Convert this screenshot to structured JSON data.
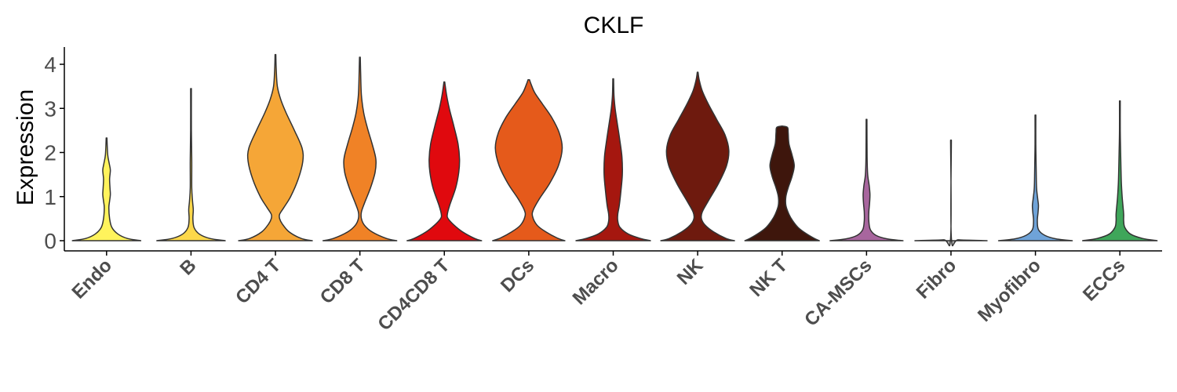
{
  "chart_data": {
    "type": "violin",
    "title": "CKLF",
    "xlabel": "",
    "ylabel": "Expression",
    "ylim": [
      -0.22,
      4.4
    ],
    "yticks": [
      "0",
      "1",
      "2",
      "3",
      "4"
    ],
    "grid": false,
    "legend": "none",
    "categories": [
      "Endo",
      "B",
      "CD4 T",
      "CD8 T",
      "CD4CD8 T",
      "DCs",
      "Macro",
      "NK",
      "NK T",
      "CA-MSCs",
      "Fibro",
      "Myofibro",
      "ECCs"
    ],
    "colors": [
      "#FFF35C",
      "#FDD84A",
      "#F5A637",
      "#F08226",
      "#E0090E",
      "#E55A1B",
      "#A5170F",
      "#6E1A0E",
      "#3E160C",
      "#A8669E",
      "#B8B8B8",
      "#6FA3D8",
      "#3FA65A"
    ],
    "violins": [
      {
        "category": "Endo",
        "max": 2.33,
        "profile": [
          [
            0,
            0.9
          ],
          [
            0.05,
            0.55
          ],
          [
            0.15,
            0.3
          ],
          [
            0.3,
            0.14
          ],
          [
            0.5,
            0.08
          ],
          [
            0.75,
            0.06
          ],
          [
            0.9,
            0.08
          ],
          [
            1.05,
            0.1
          ],
          [
            1.2,
            0.09
          ],
          [
            1.4,
            0.08
          ],
          [
            1.6,
            0.1
          ],
          [
            1.75,
            0.07
          ],
          [
            1.95,
            0.03
          ],
          [
            2.33,
            0.01
          ]
        ]
      },
      {
        "category": "B",
        "max": 3.45,
        "profile": [
          [
            0,
            0.9
          ],
          [
            0.05,
            0.5
          ],
          [
            0.15,
            0.22
          ],
          [
            0.3,
            0.08
          ],
          [
            0.5,
            0.05
          ],
          [
            0.7,
            0.06
          ],
          [
            0.9,
            0.04
          ],
          [
            1.2,
            0.02
          ],
          [
            1.8,
            0.02
          ],
          [
            2.5,
            0.01
          ],
          [
            3.45,
            0.01
          ]
        ]
      },
      {
        "category": "CD4 T",
        "max": 4.22,
        "profile": [
          [
            0,
            0.97
          ],
          [
            0.05,
            0.68
          ],
          [
            0.2,
            0.36
          ],
          [
            0.38,
            0.18
          ],
          [
            0.5,
            0.11
          ],
          [
            0.6,
            0.11
          ],
          [
            0.75,
            0.22
          ],
          [
            1.0,
            0.4
          ],
          [
            1.4,
            0.6
          ],
          [
            1.8,
            0.72
          ],
          [
            2.1,
            0.7
          ],
          [
            2.5,
            0.5
          ],
          [
            2.9,
            0.28
          ],
          [
            3.2,
            0.14
          ],
          [
            3.5,
            0.05
          ],
          [
            3.9,
            0.02
          ],
          [
            4.22,
            0.01
          ]
        ]
      },
      {
        "category": "CD8 T",
        "max": 4.16,
        "profile": [
          [
            0,
            0.97
          ],
          [
            0.05,
            0.7
          ],
          [
            0.2,
            0.32
          ],
          [
            0.35,
            0.12
          ],
          [
            0.5,
            0.04
          ],
          [
            0.65,
            0.04
          ],
          [
            0.85,
            0.12
          ],
          [
            1.2,
            0.28
          ],
          [
            1.55,
            0.4
          ],
          [
            1.85,
            0.42
          ],
          [
            2.2,
            0.32
          ],
          [
            2.55,
            0.2
          ],
          [
            2.9,
            0.1
          ],
          [
            3.3,
            0.04
          ],
          [
            3.8,
            0.02
          ],
          [
            4.16,
            0.01
          ]
        ]
      },
      {
        "category": "CD4CD8 T",
        "max": 3.6,
        "profile": [
          [
            0,
            0.98
          ],
          [
            0.05,
            0.8
          ],
          [
            0.2,
            0.48
          ],
          [
            0.35,
            0.26
          ],
          [
            0.5,
            0.1
          ],
          [
            0.6,
            0.08
          ],
          [
            0.8,
            0.14
          ],
          [
            1.2,
            0.3
          ],
          [
            1.55,
            0.38
          ],
          [
            1.85,
            0.4
          ],
          [
            2.2,
            0.36
          ],
          [
            2.6,
            0.25
          ],
          [
            3.0,
            0.13
          ],
          [
            3.3,
            0.06
          ],
          [
            3.6,
            0.01
          ]
        ]
      },
      {
        "category": "DCs",
        "max": 3.65,
        "profile": [
          [
            0,
            0.95
          ],
          [
            0.06,
            0.75
          ],
          [
            0.2,
            0.45
          ],
          [
            0.35,
            0.22
          ],
          [
            0.55,
            0.1
          ],
          [
            0.7,
            0.12
          ],
          [
            0.95,
            0.28
          ],
          [
            1.3,
            0.55
          ],
          [
            1.7,
            0.78
          ],
          [
            2.1,
            0.88
          ],
          [
            2.45,
            0.8
          ],
          [
            2.8,
            0.6
          ],
          [
            3.1,
            0.36
          ],
          [
            3.35,
            0.16
          ],
          [
            3.55,
            0.06
          ],
          [
            3.65,
            0.02
          ]
        ]
      },
      {
        "category": "Macro",
        "max": 3.67,
        "profile": [
          [
            0,
            0.98
          ],
          [
            0.05,
            0.72
          ],
          [
            0.15,
            0.4
          ],
          [
            0.3,
            0.18
          ],
          [
            0.45,
            0.12
          ],
          [
            0.6,
            0.12
          ],
          [
            0.8,
            0.16
          ],
          [
            1.1,
            0.2
          ],
          [
            1.5,
            0.24
          ],
          [
            1.9,
            0.23
          ],
          [
            2.3,
            0.17
          ],
          [
            2.7,
            0.1
          ],
          [
            3.0,
            0.05
          ],
          [
            3.3,
            0.02
          ],
          [
            3.67,
            0.01
          ]
        ]
      },
      {
        "category": "NK",
        "max": 3.82,
        "profile": [
          [
            0,
            0.97
          ],
          [
            0.05,
            0.75
          ],
          [
            0.2,
            0.42
          ],
          [
            0.35,
            0.2
          ],
          [
            0.5,
            0.1
          ],
          [
            0.65,
            0.12
          ],
          [
            0.9,
            0.28
          ],
          [
            1.3,
            0.55
          ],
          [
            1.7,
            0.76
          ],
          [
            2.05,
            0.82
          ],
          [
            2.4,
            0.72
          ],
          [
            2.75,
            0.5
          ],
          [
            3.1,
            0.28
          ],
          [
            3.4,
            0.12
          ],
          [
            3.65,
            0.04
          ],
          [
            3.82,
            0.01
          ]
        ]
      },
      {
        "category": "NK T",
        "max": 2.6,
        "profile": [
          [
            0,
            0.98
          ],
          [
            0.05,
            0.85
          ],
          [
            0.18,
            0.6
          ],
          [
            0.3,
            0.42
          ],
          [
            0.45,
            0.28
          ],
          [
            0.6,
            0.18
          ],
          [
            0.8,
            0.1
          ],
          [
            1.0,
            0.1
          ],
          [
            1.2,
            0.16
          ],
          [
            1.45,
            0.26
          ],
          [
            1.7,
            0.32
          ],
          [
            1.95,
            0.26
          ],
          [
            2.2,
            0.18
          ],
          [
            2.45,
            0.16
          ],
          [
            2.57,
            0.14
          ],
          [
            2.6,
            0.0
          ]
        ]
      },
      {
        "category": "CA-MSCs",
        "max": 2.75,
        "profile": [
          [
            0,
            0.96
          ],
          [
            0.04,
            0.55
          ],
          [
            0.12,
            0.25
          ],
          [
            0.25,
            0.1
          ],
          [
            0.45,
            0.06
          ],
          [
            0.65,
            0.06
          ],
          [
            0.85,
            0.08
          ],
          [
            1.05,
            0.09
          ],
          [
            1.25,
            0.07
          ],
          [
            1.5,
            0.03
          ],
          [
            1.9,
            0.015
          ],
          [
            2.75,
            0.01
          ]
        ]
      },
      {
        "category": "Fibro",
        "max": 2.28,
        "profile": [
          [
            0,
            0.95
          ],
          [
            0.02,
            0.2
          ],
          [
            0.06,
            0.01
          ],
          [
            2.28,
            0.01
          ]
        ]
      },
      {
        "category": "Myofibro",
        "max": 2.85,
        "profile": [
          [
            0,
            0.97
          ],
          [
            0.04,
            0.55
          ],
          [
            0.12,
            0.25
          ],
          [
            0.25,
            0.08
          ],
          [
            0.45,
            0.05
          ],
          [
            0.65,
            0.07
          ],
          [
            0.8,
            0.08
          ],
          [
            0.95,
            0.06
          ],
          [
            1.2,
            0.03
          ],
          [
            1.6,
            0.02
          ],
          [
            2.2,
            0.01
          ],
          [
            2.85,
            0.01
          ]
        ]
      },
      {
        "category": "ECCs",
        "max": 3.17,
        "profile": [
          [
            0,
            0.98
          ],
          [
            0.05,
            0.6
          ],
          [
            0.15,
            0.28
          ],
          [
            0.3,
            0.13
          ],
          [
            0.45,
            0.1
          ],
          [
            0.6,
            0.1
          ],
          [
            0.8,
            0.08
          ],
          [
            1.0,
            0.06
          ],
          [
            1.3,
            0.04
          ],
          [
            1.6,
            0.03
          ],
          [
            2.0,
            0.02
          ],
          [
            2.5,
            0.01
          ],
          [
            3.17,
            0.01
          ]
        ]
      }
    ]
  }
}
